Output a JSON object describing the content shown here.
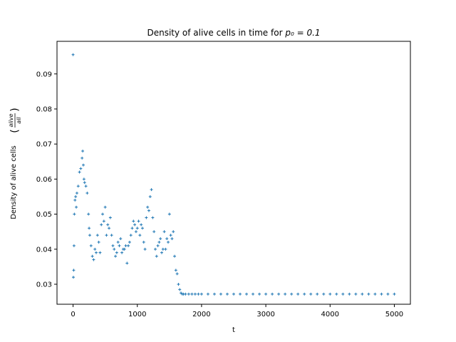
{
  "chart_data": {
    "type": "scatter",
    "title_text": "Density of alive cells in time for ",
    "title_math": "p₀ = 0.1",
    "xlabel": "t",
    "ylabel": "Density of alive cells",
    "ylabel_frac_num": "alive",
    "ylabel_frac_den": "all",
    "xlim": [
      -250,
      5250
    ],
    "ylim": [
      0.0243,
      0.0993
    ],
    "xticks": [
      0,
      1000,
      2000,
      3000,
      4000,
      5000
    ],
    "yticks": [
      0.03,
      0.04,
      0.05,
      0.06,
      0.07,
      0.08,
      0.09
    ],
    "xtick_labels": [
      "0",
      "1000",
      "2000",
      "3000",
      "4000",
      "5000"
    ],
    "ytick_labels": [
      "0.03",
      "0.04",
      "0.05",
      "0.06",
      "0.07",
      "0.08",
      "0.09"
    ],
    "marker": "+",
    "color": "#1f77b4",
    "grid": false,
    "series": [
      {
        "x": [
          0,
          5,
          10,
          15,
          20,
          30,
          40,
          50,
          60,
          80,
          100,
          120,
          140,
          150,
          160,
          170,
          180,
          200,
          220,
          240,
          250,
          260,
          280,
          300,
          320,
          340,
          360,
          380,
          400,
          420,
          440,
          460,
          480,
          500,
          520,
          540,
          560,
          580,
          600,
          620,
          640,
          660,
          680,
          700,
          720,
          740,
          760,
          780,
          800,
          820,
          840,
          860,
          880,
          900,
          920,
          940,
          960,
          980,
          1000,
          1020,
          1040,
          1060,
          1080,
          1100,
          1120,
          1140,
          1160,
          1180,
          1200,
          1220,
          1240,
          1260,
          1280,
          1300,
          1320,
          1340,
          1360,
          1380,
          1400,
          1420,
          1440,
          1460,
          1480,
          1500,
          1520,
          1540,
          1560,
          1580,
          1600,
          1620,
          1640,
          1660,
          1680,
          1700,
          1720,
          1750,
          1800,
          1850,
          1900,
          1950,
          2000,
          2100,
          2200,
          2300,
          2400,
          2500,
          2600,
          2700,
          2800,
          2900,
          3000,
          3100,
          3200,
          3300,
          3400,
          3500,
          3600,
          3700,
          3800,
          3900,
          4000,
          4100,
          4200,
          4300,
          4400,
          4500,
          4600,
          4700,
          4800,
          4900,
          5000
        ],
        "y": [
          0.0955,
          0.032,
          0.034,
          0.041,
          0.05,
          0.054,
          0.055,
          0.052,
          0.056,
          0.058,
          0.062,
          0.063,
          0.066,
          0.068,
          0.064,
          0.06,
          0.059,
          0.058,
          0.056,
          0.05,
          0.046,
          0.044,
          0.041,
          0.038,
          0.037,
          0.04,
          0.039,
          0.044,
          0.042,
          0.039,
          0.047,
          0.05,
          0.048,
          0.052,
          0.044,
          0.047,
          0.046,
          0.049,
          0.044,
          0.041,
          0.04,
          0.038,
          0.039,
          0.042,
          0.041,
          0.043,
          0.039,
          0.04,
          0.04,
          0.041,
          0.036,
          0.041,
          0.042,
          0.044,
          0.046,
          0.048,
          0.047,
          0.045,
          0.046,
          0.048,
          0.044,
          0.047,
          0.046,
          0.042,
          0.04,
          0.049,
          0.052,
          0.051,
          0.055,
          0.057,
          0.049,
          0.045,
          0.04,
          0.038,
          0.041,
          0.042,
          0.043,
          0.039,
          0.04,
          0.045,
          0.04,
          0.043,
          0.042,
          0.05,
          0.044,
          0.043,
          0.045,
          0.038,
          0.034,
          0.033,
          0.03,
          0.0285,
          0.0275,
          0.0272,
          0.0272,
          0.0272,
          0.0272,
          0.0272,
          0.0272,
          0.0272,
          0.0272,
          0.0272,
          0.0272,
          0.0272,
          0.0272,
          0.0272,
          0.0272,
          0.0272,
          0.0272,
          0.0272,
          0.0272,
          0.0272,
          0.0272,
          0.0272,
          0.0272,
          0.0272,
          0.0272,
          0.0272,
          0.0272,
          0.0272,
          0.0272,
          0.0272,
          0.0272,
          0.0272,
          0.0272,
          0.0272,
          0.0272,
          0.0272,
          0.0272,
          0.0272,
          0.0272
        ]
      }
    ]
  }
}
